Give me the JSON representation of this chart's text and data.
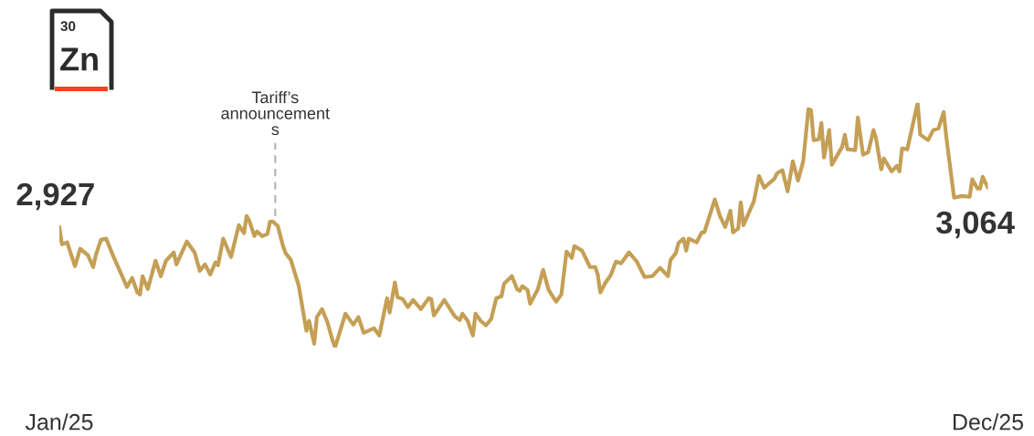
{
  "chart_data": {
    "type": "line",
    "x": [
      "2025-01-06",
      "2025-01-07",
      "2025-01-09",
      "2025-01-12",
      "2025-01-14",
      "2025-01-17",
      "2025-01-19",
      "2025-01-20",
      "2025-01-22",
      "2025-01-24",
      "2025-01-27",
      "2025-02-01",
      "2025-02-03",
      "2025-02-05",
      "2025-02-06",
      "2025-02-07",
      "2025-02-09",
      "2025-02-12",
      "2025-02-14",
      "2025-02-16",
      "2025-02-19",
      "2025-02-20",
      "2025-02-24",
      "2025-02-27",
      "2025-03-01",
      "2025-03-03",
      "2025-03-05",
      "2025-03-07",
      "2025-03-08",
      "2025-03-10",
      "2025-03-13",
      "2025-03-16",
      "2025-03-18",
      "2025-03-19",
      "2025-03-20",
      "2025-03-22",
      "2025-03-23",
      "2025-03-25",
      "2025-03-27",
      "2025-03-28",
      "2025-03-29",
      "2025-03-31",
      "2025-04-02",
      "2025-04-03",
      "2025-04-05",
      "2025-04-08",
      "2025-04-11",
      "2025-04-12",
      "2025-04-14",
      "2025-04-15",
      "2025-04-17",
      "2025-04-19",
      "2025-04-21",
      "2025-04-22",
      "2025-04-26",
      "2025-04-29",
      "2025-05-01",
      "2025-05-03",
      "2025-05-07",
      "2025-05-09",
      "2025-05-12",
      "2025-05-13",
      "2025-05-15",
      "2025-05-16",
      "2025-05-18",
      "2025-05-20",
      "2025-05-22",
      "2025-05-25",
      "2025-05-28",
      "2025-05-29",
      "2025-05-30",
      "2025-06-03",
      "2025-06-07",
      "2025-06-09",
      "2025-06-10",
      "2025-06-12",
      "2025-06-14",
      "2025-06-15",
      "2025-06-17",
      "2025-06-19",
      "2025-06-21",
      "2025-06-23",
      "2025-06-25",
      "2025-06-26",
      "2025-06-29",
      "2025-07-01",
      "2025-07-02",
      "2025-07-03",
      "2025-07-05",
      "2025-07-06",
      "2025-07-09",
      "2025-07-11",
      "2025-07-13",
      "2025-07-14",
      "2025-07-16",
      "2025-07-18",
      "2025-07-20",
      "2025-07-22",
      "2025-07-23",
      "2025-07-26",
      "2025-07-29",
      "2025-07-31",
      "2025-08-01",
      "2025-08-02",
      "2025-08-04",
      "2025-08-06",
      "2025-08-08",
      "2025-08-10",
      "2025-08-13",
      "2025-08-16",
      "2025-08-19",
      "2025-08-22",
      "2025-08-25",
      "2025-08-28",
      "2025-08-29",
      "2025-08-31",
      "2025-09-01",
      "2025-09-03",
      "2025-09-04",
      "2025-09-05",
      "2025-09-08",
      "2025-09-10",
      "2025-09-11",
      "2025-09-15",
      "2025-09-17",
      "2025-09-19",
      "2025-09-21",
      "2025-09-22",
      "2025-09-24",
      "2025-09-25",
      "2025-09-26",
      "2025-09-30",
      "2025-10-02",
      "2025-10-04",
      "2025-10-08",
      "2025-10-09",
      "2025-10-11",
      "2025-10-13",
      "2025-10-15",
      "2025-10-17",
      "2025-10-19",
      "2025-10-21",
      "2025-10-22",
      "2025-10-23",
      "2025-10-25",
      "2025-10-26",
      "2025-10-27",
      "2025-10-29",
      "2025-10-30",
      "2025-11-03",
      "2025-11-04",
      "2025-11-05",
      "2025-11-08",
      "2025-11-09",
      "2025-11-11",
      "2025-11-13",
      "2025-11-15",
      "2025-11-16",
      "2025-11-18",
      "2025-11-19",
      "2025-11-22",
      "2025-11-24",
      "2025-11-25",
      "2025-11-26",
      "2025-11-28",
      "2025-12-02",
      "2025-12-03",
      "2025-12-06",
      "2025-12-08",
      "2025-12-10",
      "2025-12-12",
      "2025-12-13",
      "2025-12-16",
      "2025-12-19",
      "2025-12-22",
      "2025-12-23",
      "2025-12-25",
      "2025-12-26",
      "2025-12-27",
      "2025-12-29"
    ],
    "series": [
      {
        "color": "#c49f55",
        "values": [
          2927,
          2866,
          2873,
          2790,
          2851,
          2828,
          2787,
          2828,
          2882,
          2886,
          2819,
          2717,
          2749,
          2698,
          2691,
          2755,
          2710,
          2809,
          2755,
          2809,
          2838,
          2796,
          2876,
          2838,
          2774,
          2796,
          2761,
          2803,
          2793,
          2886,
          2822,
          2933,
          2905,
          2965,
          2949,
          2895,
          2911,
          2895,
          2902,
          2946,
          2946,
          2930,
          2860,
          2835,
          2812,
          2723,
          2564,
          2599,
          2519,
          2612,
          2640,
          2596,
          2532,
          2506,
          2624,
          2586,
          2612,
          2557,
          2573,
          2548,
          2678,
          2628,
          2733,
          2682,
          2675,
          2647,
          2672,
          2640,
          2678,
          2675,
          2618,
          2672,
          2615,
          2602,
          2624,
          2599,
          2548,
          2624,
          2599,
          2583,
          2605,
          2678,
          2685,
          2729,
          2755,
          2710,
          2704,
          2720,
          2707,
          2659,
          2710,
          2777,
          2710,
          2694,
          2666,
          2691,
          2841,
          2819,
          2860,
          2844,
          2787,
          2787,
          2761,
          2698,
          2733,
          2758,
          2806,
          2800,
          2838,
          2806,
          2752,
          2755,
          2784,
          2755,
          2812,
          2835,
          2870,
          2886,
          2844,
          2886,
          2873,
          2908,
          2908,
          3023,
          2965,
          2927,
          2984,
          2908,
          2921,
          3013,
          2933,
          3016,
          3105,
          3064,
          3096,
          3115,
          3125,
          3051,
          3156,
          3089,
          3156,
          3338,
          3335,
          3230,
          3233,
          3290,
          3169,
          3265,
          3144,
          3207,
          3249,
          3198,
          3195,
          3309,
          3179,
          3188,
          3265,
          3236,
          3128,
          3166,
          3121,
          3140,
          3121,
          3201,
          3198,
          3360,
          3249,
          3230,
          3265,
          3271,
          3328,
          3242,
          3029,
          3035,
          3032,
          3093,
          3061,
          3061,
          3102,
          3064
        ],
        "value_labels": [
          "2,927",
          null,
          null,
          null,
          null,
          null,
          null,
          null,
          null,
          null,
          null,
          null,
          null,
          null,
          null,
          null,
          null,
          null,
          null,
          null,
          null,
          null,
          null,
          null,
          null,
          null,
          null,
          null,
          null,
          null,
          null,
          null,
          null,
          null,
          null,
          null,
          null,
          null,
          null,
          null,
          null,
          null,
          null,
          null,
          null,
          null,
          null,
          null,
          null,
          null,
          null,
          null,
          null,
          null,
          null,
          null,
          null,
          null,
          null,
          null,
          null,
          null,
          null,
          null,
          null,
          null,
          null,
          null,
          null,
          null,
          null,
          null,
          null,
          null,
          null,
          null,
          null,
          null,
          null,
          null,
          null,
          null,
          null,
          null,
          null,
          null,
          null,
          null,
          null,
          null,
          null,
          null,
          null,
          null,
          null,
          null,
          null,
          null,
          null,
          null,
          null,
          null,
          null,
          null,
          null,
          null,
          null,
          null,
          null,
          null,
          null,
          null,
          null,
          null,
          null,
          null,
          null,
          null,
          null,
          null,
          null,
          null,
          null,
          null,
          null,
          null,
          null,
          null,
          null,
          null,
          null,
          null,
          null,
          null,
          null,
          null,
          null,
          null,
          null,
          null,
          null,
          null,
          null,
          null,
          null,
          null,
          null,
          null,
          null,
          null,
          null,
          null,
          null,
          null,
          null,
          null,
          null,
          null,
          null,
          null,
          null,
          null,
          null,
          null,
          null,
          null,
          null,
          null,
          null,
          null,
          null,
          null,
          null,
          null,
          null,
          null,
          null,
          null,
          null,
          "3,064"
        ]
      }
    ],
    "xticks": [
      {
        "value": "2025-01-06",
        "label": "Jan/25"
      },
      {
        "value": "2025-12-29",
        "label": "Dec/25"
      }
    ],
    "xlim": [
      "2025-01-06",
      "2025-12-29"
    ],
    "tick_labels": "x",
    "grid": false,
    "marker": "none",
    "line_style": "solid",
    "ref_lines": [
      {
        "axis": "x",
        "value": "2025-03-30",
        "label": "Tariff’s\nannouncement\ns",
        "color": "#b3b3b3",
        "line_style": "dashed"
      }
    ],
    "annotations": [
      "30",
      "Zn"
    ]
  }
}
